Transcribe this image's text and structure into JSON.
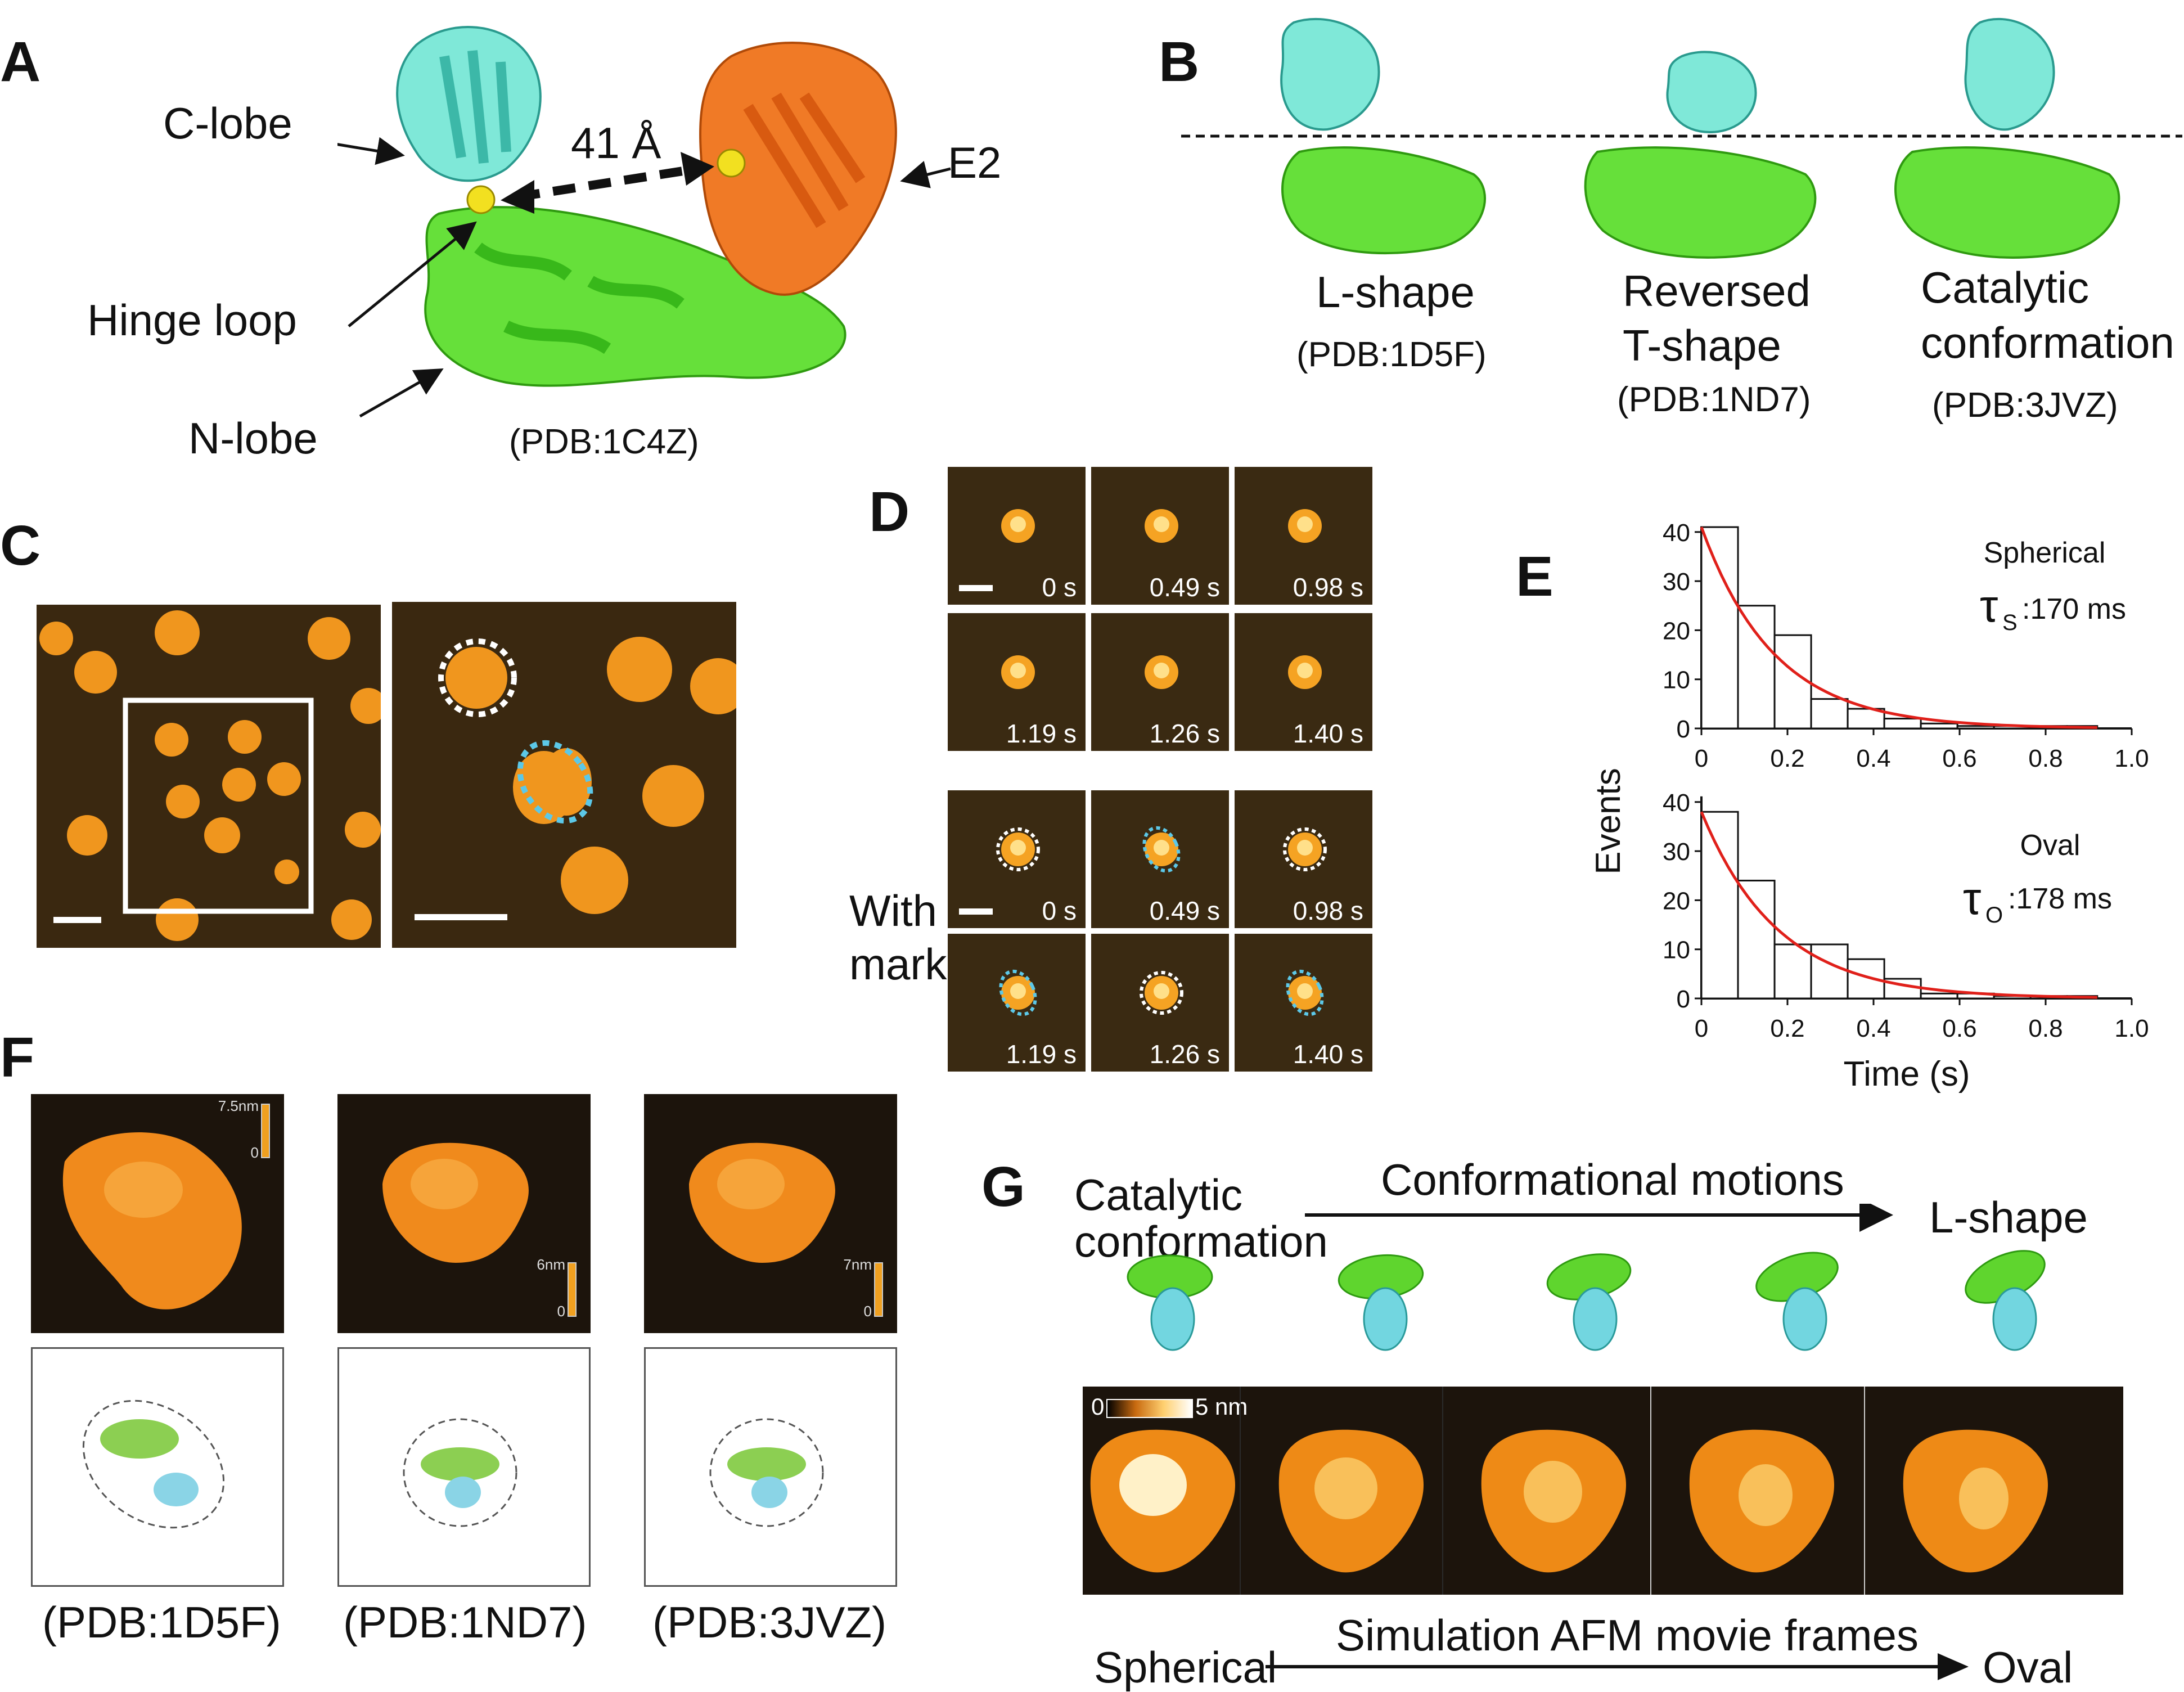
{
  "panels": {
    "A": "A",
    "B": "B",
    "C": "C",
    "D": "D",
    "E": "E",
    "F": "F",
    "G": "G"
  },
  "panelA": {
    "c_lobe": "C-lobe",
    "e2": "E2",
    "distance": "41 Å",
    "hinge_loop": "Hinge loop",
    "n_lobe": "N-lobe",
    "pdb": "(PDB:1C4Z)"
  },
  "panelB": {
    "l_shape": "L-shape",
    "l_pdb": "(PDB:1D5F)",
    "rev_t_line1": "Reversed",
    "rev_t_line2": "T-shape",
    "rev_t_pdb": "(PDB:1ND7)",
    "cat_line1": "Catalytic",
    "cat_line2": "conformation",
    "cat_pdb": "(PDB:3JVZ)"
  },
  "panelD": {
    "times_top": [
      "0 s",
      "0.49 s",
      "0.98 s",
      "1.19 s",
      "1.26 s",
      "1.40 s"
    ],
    "times_bottom": [
      "0 s",
      "0.49 s",
      "0.98 s",
      "1.19 s",
      "1.26 s",
      "1.40 s"
    ],
    "with_mark_line1": "With",
    "with_mark_line2": "mark"
  },
  "panelE": {
    "ylabel": "Events",
    "xlabel": "Time (s)",
    "top_label": "Spherical",
    "top_tau_sub": "S",
    "top_tau_value": ":170 ms",
    "bottom_label": "Oval",
    "bottom_tau_sub": "O",
    "bottom_tau_value": ":178 ms",
    "tau_symbol": "τ"
  },
  "panelF": {
    "scale1": "7.5nm",
    "scale2": "6nm",
    "scale3": "7nm",
    "scale_zero": "0",
    "pdb1": "(PDB:1D5F)",
    "pdb2": "(PDB:1ND7)",
    "pdb3": "(PDB:3JVZ)"
  },
  "panelG": {
    "cat_line1": "Catalytic",
    "cat_line2": "conformation",
    "motions": "Conformational motions",
    "l_shape": "L-shape",
    "scale_zero": "0",
    "scale_max": "5 nm",
    "sim_label": "Simulation AFM movie frames",
    "spherical": "Spherical",
    "oval": "Oval"
  },
  "colors": {
    "c_lobe": "#7fe8d8",
    "n_lobe": "#66e03a",
    "e2": "#f07a26",
    "zinc": "#f2e020",
    "afm_bright": "#ffb52a",
    "fit_curve": "#e0201a",
    "mark_white": "#ffffff",
    "mark_cyan": "#5cc8e8"
  },
  "chart_data": [
    {
      "type": "bar",
      "title": "",
      "label": "Spherical",
      "tau_ms": 170,
      "xlabel": "Time (s)",
      "ylabel": "Events",
      "bin_edges": [
        0,
        0.085,
        0.17,
        0.255,
        0.34,
        0.425,
        0.51,
        0.595,
        0.68,
        0.765,
        0.85,
        0.92
      ],
      "values": [
        41,
        25,
        19,
        6,
        4,
        2,
        1,
        0.5,
        0.5,
        0.5,
        0.5
      ],
      "xlim": [
        0,
        1.0
      ],
      "ylim": [
        0,
        40
      ],
      "xticks": [
        0,
        0.2,
        0.4,
        0.6,
        0.8,
        1.0
      ],
      "yticks": [
        0,
        10,
        20,
        30,
        40
      ],
      "fit": "exponential decay"
    },
    {
      "type": "bar",
      "title": "",
      "label": "Oval",
      "tau_ms": 178,
      "xlabel": "Time (s)",
      "ylabel": "Events",
      "bin_edges": [
        0,
        0.085,
        0.17,
        0.255,
        0.34,
        0.425,
        0.51,
        0.595,
        0.68,
        0.765,
        0.85,
        0.92
      ],
      "values": [
        38,
        24,
        11,
        11,
        8,
        4,
        1,
        1,
        0.5,
        0.5,
        0.5
      ],
      "xlim": [
        0,
        1.0
      ],
      "ylim": [
        0,
        40
      ],
      "xticks": [
        0,
        0.2,
        0.4,
        0.6,
        0.8,
        1.0
      ],
      "yticks": [
        0,
        10,
        20,
        30,
        40
      ],
      "fit": "exponential decay"
    }
  ]
}
